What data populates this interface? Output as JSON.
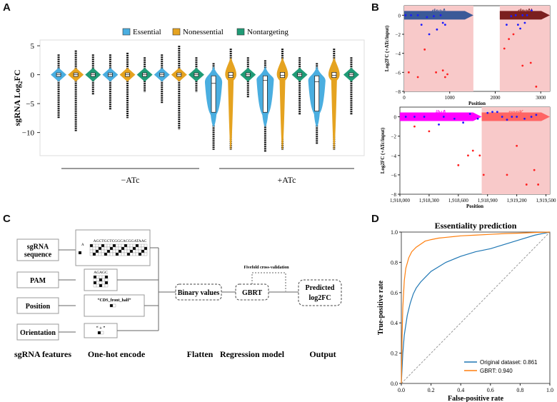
{
  "panels": {
    "a": "A",
    "b": "B",
    "c": "C",
    "d": "D"
  },
  "colors": {
    "essential": "#4aaee0",
    "nonessential": "#e5a320",
    "nontargeting": "#1f9b76",
    "shade": "#f8c9c9",
    "dnaA": "#3b5998",
    "dnaN": "#7b1f1f",
    "ilvA": "#ff00ff",
    "ppnK": "#ff6464",
    "original": "#1f77b4",
    "gbrt": "#ff7f0e"
  },
  "panelA": {
    "chart_data": {
      "type": "violin",
      "title": "",
      "ylabel": "sgRNA Log2FC",
      "ylim": [
        -14,
        6
      ],
      "yticks": [
        5,
        0,
        -5,
        -10
      ],
      "legend": [
        "Essential",
        "Nonessential",
        "Nontargeting"
      ],
      "conditions": [
        "−ATc",
        "+ATc"
      ],
      "series": [
        {
          "name": "Essential",
          "condition": "−ATc",
          "median": 0,
          "q1": -0.3,
          "q3": 0.3,
          "min": -7.5,
          "max": 3.5
        },
        {
          "name": "Nonessential",
          "condition": "−ATc",
          "median": 0,
          "q1": -0.3,
          "q3": 0.3,
          "min": -9.8,
          "max": 4.2
        },
        {
          "name": "Nontargeting",
          "condition": "−ATc",
          "median": 0,
          "q1": -0.3,
          "q3": 0.3,
          "min": -3.5,
          "max": 3.5
        },
        {
          "name": "Essential",
          "condition": "−ATc",
          "median": 0,
          "q1": -0.3,
          "q3": 0.3,
          "min": -6,
          "max": 3.5
        },
        {
          "name": "Nonessential",
          "condition": "−ATc",
          "median": 0,
          "q1": -0.3,
          "q3": 0.3,
          "min": -7.5,
          "max": 3.8
        },
        {
          "name": "Nontargeting",
          "condition": "−ATc",
          "median": 0,
          "q1": -0.3,
          "q3": 0.3,
          "min": -3,
          "max": 3
        },
        {
          "name": "Essential",
          "condition": "−ATc",
          "median": 0,
          "q1": -0.3,
          "q3": 0.3,
          "min": -5,
          "max": 3.5
        },
        {
          "name": "Nonessential",
          "condition": "−ATc",
          "median": 0,
          "q1": -0.3,
          "q3": 0.3,
          "min": -9.5,
          "max": 5
        },
        {
          "name": "Nontargeting",
          "condition": "−ATc",
          "median": 0,
          "q1": -0.3,
          "q3": 0.3,
          "min": -3,
          "max": 3
        },
        {
          "name": "Essential",
          "condition": "+ATc",
          "median": -1.5,
          "q1": -6.5,
          "q3": -0.2,
          "min": -13,
          "max": 2
        },
        {
          "name": "Nonessential",
          "condition": "+ATc",
          "median": -0.1,
          "q1": -0.5,
          "q3": 0.4,
          "min": -13,
          "max": 4.5
        },
        {
          "name": "Nontargeting",
          "condition": "+ATc",
          "median": 0,
          "q1": -0.3,
          "q3": 0.3,
          "min": -4,
          "max": 3
        },
        {
          "name": "Essential",
          "condition": "+ATc",
          "median": -1,
          "q1": -6.5,
          "q3": -0.2,
          "min": -13.3,
          "max": 2.5
        },
        {
          "name": "Nonessential",
          "condition": "+ATc",
          "median": -0.1,
          "q1": -0.5,
          "q3": 0.4,
          "min": -13,
          "max": 4.5
        },
        {
          "name": "Nontargeting",
          "condition": "+ATc",
          "median": 0,
          "q1": -0.3,
          "q3": 0.3,
          "min": -7,
          "max": 3
        },
        {
          "name": "Essential",
          "condition": "+ATc",
          "median": -1.2,
          "q1": -6.3,
          "q3": -0.2,
          "min": -12,
          "max": 2
        },
        {
          "name": "Nonessential",
          "condition": "+ATc",
          "median": -0.1,
          "q1": -0.5,
          "q3": 0.4,
          "min": -13,
          "max": 4.5
        },
        {
          "name": "Nontargeting",
          "condition": "+ATc",
          "median": 0,
          "q1": -0.3,
          "q3": 0.3,
          "min": -7,
          "max": 3
        }
      ]
    }
  },
  "panelB": {
    "chart_data": [
      {
        "type": "scatter",
        "ylabel": "Log2FC (+ATc/input)",
        "xlabel": "Position",
        "xlim": [
          0,
          3200
        ],
        "ylim": [
          -8,
          1
        ],
        "xticks": [
          0,
          1000,
          2000,
          3000
        ],
        "yticks": [
          0,
          -2,
          -4,
          -6,
          -8
        ],
        "regions": [
          {
            "gene": "dnaA",
            "start": 0,
            "end": 1520
          },
          {
            "gene": "dnaN",
            "start": 2100,
            "end": 3200
          }
        ],
        "blue_points": [
          [
            30,
            0
          ],
          [
            150,
            0
          ],
          [
            300,
            0
          ],
          [
            380,
            -1
          ],
          [
            500,
            -0.2
          ],
          [
            550,
            -2
          ],
          [
            650,
            -0.1
          ],
          [
            720,
            -1.5
          ],
          [
            800,
            0
          ],
          [
            850,
            -0.8
          ],
          [
            900,
            -1
          ],
          [
            2250,
            -1
          ],
          [
            2350,
            -0.1
          ],
          [
            2450,
            0
          ],
          [
            2500,
            -1
          ],
          [
            2550,
            -1.4
          ],
          [
            2600,
            0
          ],
          [
            2650,
            -0.8
          ],
          [
            2700,
            0
          ],
          [
            2800,
            0.5
          ]
        ],
        "red_points": [
          [
            100,
            -6
          ],
          [
            300,
            -6.5
          ],
          [
            450,
            -3.6
          ],
          [
            700,
            -6
          ],
          [
            850,
            -5.8
          ],
          [
            900,
            -6.5
          ],
          [
            950,
            -6.2
          ],
          [
            2200,
            -3.5
          ],
          [
            2300,
            -2.5
          ],
          [
            2400,
            -2
          ],
          [
            2600,
            -5.3
          ],
          [
            2780,
            -5
          ],
          [
            2900,
            -7.5
          ]
        ]
      },
      {
        "type": "scatter",
        "ylabel": "Log2FC (+ATc/input)",
        "xlabel": "Position",
        "xlim": [
          1918000,
          1919540
        ],
        "ylim": [
          -8,
          1
        ],
        "xticks": [
          "1,918,000",
          "1,918,300",
          "1,918,600",
          "1,918,900",
          "1,919,200",
          "1,919,500"
        ],
        "xtick_values": [
          1918000,
          1918300,
          1918600,
          1918900,
          1919200,
          1919500
        ],
        "yticks": [
          0,
          -2,
          -4,
          -6,
          -8
        ],
        "regions": [
          {
            "gene": "ilvA",
            "start": 1918000,
            "end": 1918840
          },
          {
            "gene": "ppnK",
            "start": 1918840,
            "end": 1919540
          }
        ],
        "blue_points": [
          [
            1918060,
            0
          ],
          [
            1918150,
            0
          ],
          [
            1918250,
            0
          ],
          [
            1918400,
            -0.8
          ],
          [
            1918450,
            0
          ],
          [
            1918560,
            -0.2
          ],
          [
            1918650,
            -0.6
          ],
          [
            1918720,
            0.3
          ],
          [
            1918800,
            -0.2
          ],
          [
            1918900,
            0.4
          ],
          [
            1918950,
            0.5
          ],
          [
            1919000,
            0.5
          ],
          [
            1919050,
            0
          ],
          [
            1919100,
            -0.3
          ],
          [
            1919150,
            0
          ],
          [
            1919200,
            0
          ],
          [
            1919280,
            -0.2
          ],
          [
            1919350,
            0
          ],
          [
            1919400,
            0.2
          ]
        ],
        "red_points": [
          [
            1918150,
            -1
          ],
          [
            1918300,
            -1.5
          ],
          [
            1918600,
            -5
          ],
          [
            1918700,
            -4
          ],
          [
            1918750,
            -3.5
          ],
          [
            1918820,
            -4
          ],
          [
            1918860,
            -6
          ],
          [
            1919100,
            -6
          ],
          [
            1919200,
            -3
          ],
          [
            1919300,
            -7
          ],
          [
            1919380,
            -5.5
          ],
          [
            1919420,
            -7
          ]
        ]
      }
    ]
  },
  "panelC": {
    "features": [
      "sgRNA sequence",
      "PAM",
      "Position",
      "Orientation"
    ],
    "feature_lines": [
      [
        "sgRNA",
        "sequence"
      ],
      [
        "PAM"
      ],
      [
        "Position"
      ],
      [
        "Orientation"
      ]
    ],
    "seq_label": "AGCTGCTCGGCACGGATAAC",
    "pam_label": "AGAGC",
    "position_label": "“CDS_front_half”",
    "orientation_label": "“ + ”",
    "encode_prefix": "A",
    "flatten": "Binary values",
    "model": "GBRT",
    "cv": "Fivefold cross-validation",
    "output_lines": [
      "Predicted",
      "log2FC"
    ],
    "captions": [
      "sgRNA features",
      "One-hot encode",
      "Flatten",
      "Regression model",
      "Output"
    ]
  },
  "panelD": {
    "chart_data": {
      "type": "line",
      "title": "Essentiality prediction",
      "xlabel": "False-positive rate",
      "ylabel": "True-positive rate",
      "xlim": [
        0,
        1
      ],
      "ylim": [
        0,
        1
      ],
      "xticks": [
        "0.0",
        "0.2",
        "0.4",
        "0.6",
        "0.8",
        "1.0"
      ],
      "yticks": [
        "0.0",
        "0.2",
        "0.4",
        "0.6",
        "0.8",
        "1.0"
      ],
      "legend": [
        "Original dataset: 0.861",
        "GBRT: 0.940"
      ],
      "series": [
        {
          "name": "Original dataset: 0.861",
          "x": [
            0,
            0.005,
            0.01,
            0.02,
            0.04,
            0.06,
            0.08,
            0.1,
            0.13,
            0.16,
            0.2,
            0.25,
            0.3,
            0.35,
            0.4,
            0.5,
            0.6,
            0.7,
            0.8,
            0.9,
            1.0
          ],
          "y": [
            0,
            0.1,
            0.2,
            0.32,
            0.45,
            0.53,
            0.59,
            0.63,
            0.67,
            0.7,
            0.74,
            0.77,
            0.8,
            0.82,
            0.84,
            0.87,
            0.89,
            0.92,
            0.95,
            0.98,
            1.0
          ]
        },
        {
          "name": "GBRT: 0.940",
          "x": [
            0,
            0.005,
            0.01,
            0.02,
            0.03,
            0.05,
            0.07,
            0.1,
            0.13,
            0.16,
            0.2,
            0.25,
            0.3,
            0.4,
            0.5,
            0.6,
            0.7,
            0.8,
            0.9,
            1.0
          ],
          "y": [
            0,
            0.3,
            0.5,
            0.68,
            0.76,
            0.83,
            0.87,
            0.9,
            0.92,
            0.94,
            0.95,
            0.96,
            0.965,
            0.975,
            0.98,
            0.985,
            0.99,
            0.993,
            0.997,
            1.0
          ]
        }
      ]
    }
  }
}
